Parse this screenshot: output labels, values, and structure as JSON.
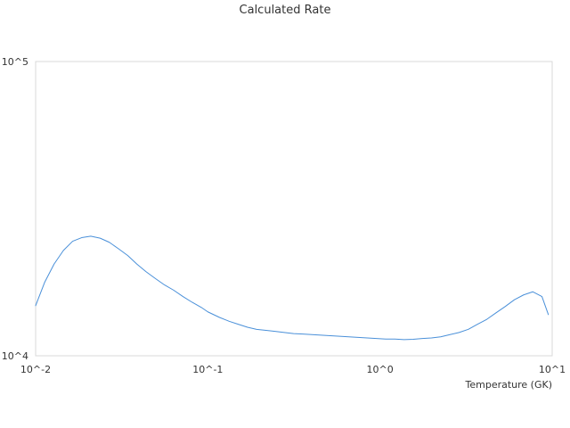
{
  "chart_data": {
    "type": "line",
    "title": "Calculated Rate",
    "xlabel": "Temperature (GK)",
    "ylabel": "",
    "x_scale": "log",
    "y_scale": "log",
    "xlim": [
      0.01,
      10
    ],
    "ylim": [
      10000,
      100000
    ],
    "x_tick_labels": [
      "10^-2",
      "10^-1",
      "10^0",
      "10^1"
    ],
    "y_tick_labels": [
      "10^4",
      "10^5"
    ],
    "x_ticks": [
      0.01,
      0.1,
      1,
      10
    ],
    "y_ticks": [
      10000,
      100000
    ],
    "grid": false,
    "legend": "none",
    "colors": {
      "series": "#4a90d9",
      "frame": "#d9d9d9",
      "text": "#333333"
    },
    "series": [
      {
        "x": [
          0.01,
          0.0113,
          0.0128,
          0.0145,
          0.0164,
          0.0185,
          0.0209,
          0.0237,
          0.0268,
          0.0303,
          0.0343,
          0.0387,
          0.0438,
          0.0496,
          0.0561,
          0.0634,
          0.0717,
          0.0811,
          0.0917,
          0.1,
          0.117,
          0.133,
          0.15,
          0.17,
          0.192,
          0.218,
          0.246,
          0.278,
          0.315,
          0.356,
          0.403,
          0.455,
          0.515,
          0.583,
          0.659,
          0.745,
          0.843,
          0.953,
          1.08,
          1.22,
          1.38,
          1.56,
          1.76,
          1.99,
          2.25,
          2.55,
          2.88,
          3.26,
          3.69,
          4.17,
          4.72,
          5.33,
          6.03,
          6.82,
          7.71,
          8.72,
          9.5
        ],
        "y": [
          14800,
          17800,
          20500,
          22800,
          24500,
          25200,
          25500,
          25100,
          24300,
          23100,
          21900,
          20500,
          19300,
          18300,
          17400,
          16700,
          15900,
          15200,
          14600,
          14100,
          13500,
          13100,
          12800,
          12500,
          12300,
          12200,
          12100,
          12000,
          11900,
          11850,
          11800,
          11750,
          11700,
          11650,
          11600,
          11550,
          11500,
          11450,
          11400,
          11400,
          11350,
          11380,
          11450,
          11500,
          11600,
          11800,
          12000,
          12300,
          12800,
          13300,
          14000,
          14700,
          15500,
          16100,
          16500,
          15900,
          13800
        ]
      }
    ]
  }
}
